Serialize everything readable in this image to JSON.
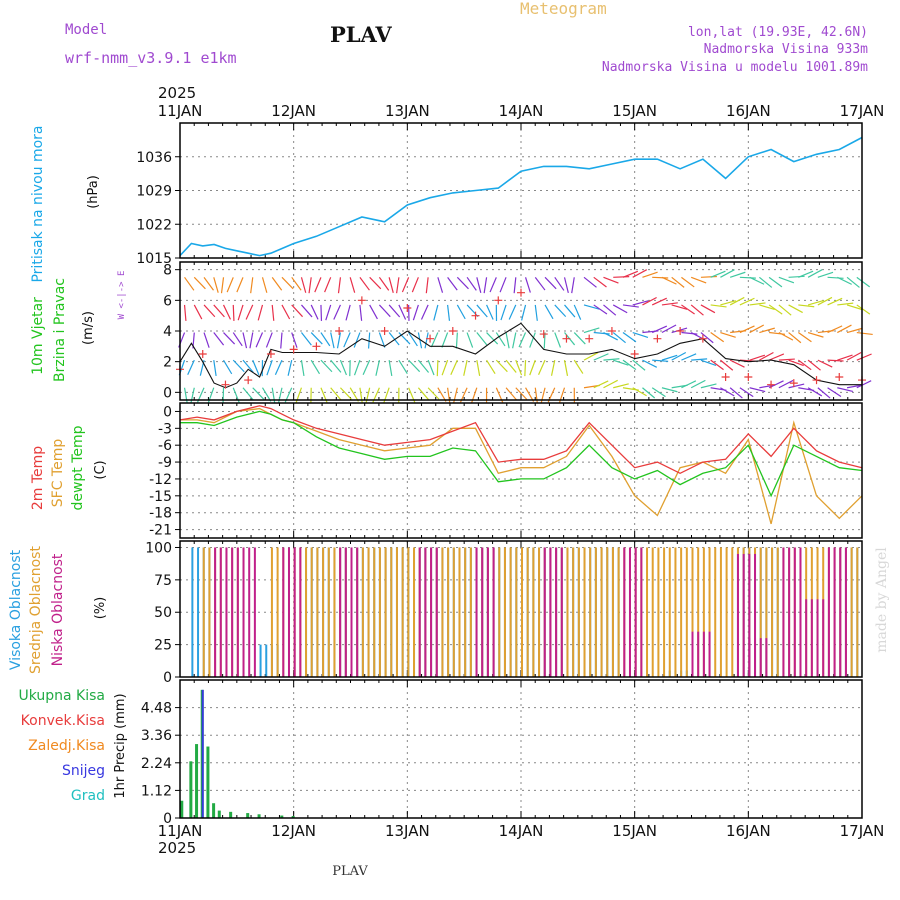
{
  "header": {
    "model_label": "Model",
    "model_name": "wrf-nmm_v3.9.1 e1km",
    "station": "PLAV",
    "product": "Meteogram",
    "lonlat": "lon,lat (19.93E, 42.6N)",
    "elevation": "Nadmorska Visina 933m",
    "model_elevation": "Nadmorska Visina u modelu 1001.89m",
    "watermark": "made by Angel",
    "footer_station": "PLAV"
  },
  "time_axis": {
    "year": "2025",
    "labels": [
      "11JAN",
      "12JAN",
      "13JAN",
      "14JAN",
      "15JAN",
      "16JAN",
      "17JAN"
    ],
    "range_days": [
      0,
      6
    ]
  },
  "colors": {
    "pressure": "#1aa8e8",
    "temp2m": "#e83c3c",
    "sfc_temp": "#e0a030",
    "dewpt": "#22c41e",
    "high_cloud": "#2aa0e0",
    "mid_cloud": "#e0a030",
    "low_cloud": "#c0208a",
    "purple_text": "#a04ad0",
    "total_precip": "#22aa44",
    "snow": "#3838e0",
    "conv": "#e83c3c",
    "frz": "#f08a20",
    "grad": "#20c0c0"
  },
  "chart_data": [
    {
      "type": "line",
      "panel": "pressure",
      "ylabel": [
        "Pritisak na nivou mora",
        "(hPa)"
      ],
      "ylim": [
        1015,
        1043
      ],
      "yticks": [
        1015,
        1022,
        1029,
        1036
      ],
      "series": [
        {
          "x": [
            0,
            0.1,
            0.2,
            0.3,
            0.4,
            0.5,
            0.6,
            0.7,
            0.8,
            0.9,
            1.0,
            1.2,
            1.4,
            1.6,
            1.8,
            2.0,
            2.2,
            2.4,
            2.6,
            2.8,
            3.0,
            3.2,
            3.4,
            3.6,
            3.8,
            4.0,
            4.2,
            4.4,
            4.6,
            4.8,
            5.0,
            5.2,
            5.4,
            5.6,
            5.8,
            6.0
          ],
          "y": [
            1015.5,
            1018,
            1017.5,
            1017.8,
            1017,
            1016.5,
            1016,
            1015.5,
            1016,
            1017,
            1018,
            1019.5,
            1021.5,
            1023.5,
            1022.5,
            1026,
            1027.5,
            1028.5,
            1029,
            1029.5,
            1033,
            1034,
            1034,
            1033.5,
            1034.5,
            1035.5,
            1035.5,
            1033.5,
            1035.5,
            1031.5,
            1036,
            1037.5,
            1035,
            1036.5,
            1037.5,
            1040
          ]
        }
      ]
    },
    {
      "type": "line",
      "panel": "wind",
      "ylabel": [
        "10m Vjetar",
        "Brzina i Pravac",
        "(m/s)"
      ],
      "direction_key": "W <-|-> E",
      "ylim": [
        -0.5,
        8.5
      ],
      "yticks": [
        0,
        2,
        4,
        6,
        8
      ],
      "series": [
        {
          "name": "speed",
          "x": [
            0,
            0.1,
            0.2,
            0.3,
            0.4,
            0.5,
            0.6,
            0.7,
            0.8,
            0.9,
            1.0,
            1.2,
            1.4,
            1.6,
            1.8,
            2.0,
            2.2,
            2.4,
            2.6,
            2.8,
            3.0,
            3.2,
            3.4,
            3.6,
            3.8,
            4.0,
            4.2,
            4.4,
            4.6,
            4.8,
            5.0,
            5.2,
            5.4,
            5.6,
            5.8,
            6.0
          ],
          "y": [
            2.0,
            3.2,
            2.0,
            0.6,
            0.3,
            0.6,
            1.5,
            1.0,
            2.8,
            2.6,
            2.6,
            2.6,
            2.5,
            3.5,
            3.0,
            4.0,
            3.0,
            3.0,
            2.5,
            3.6,
            4.5,
            2.8,
            2.5,
            2.5,
            2.8,
            2.2,
            2.5,
            3.2,
            3.5,
            2.2,
            2.0,
            2.1,
            1.8,
            0.8,
            0.5,
            0.5
          ]
        },
        {
          "name": "gust",
          "x": [
            0,
            0.2,
            0.4,
            0.6,
            0.8,
            1.0,
            1.2,
            1.4,
            1.6,
            1.8,
            2.0,
            2.2,
            2.4,
            2.6,
            2.8,
            3.0,
            3.2,
            3.4,
            3.6,
            3.8,
            4.0,
            4.2,
            4.4,
            4.6,
            4.8,
            5.0,
            5.2,
            5.4,
            5.6,
            5.8,
            6.0
          ],
          "y": [
            1.5,
            2.5,
            0.5,
            0.8,
            2.5,
            2.8,
            3.0,
            4.0,
            6.0,
            4.0,
            5.5,
            3.5,
            4.0,
            5.0,
            6.0,
            6.5,
            3.8,
            3.5,
            3.5,
            4.0,
            2.5,
            3.5,
            4.0,
            3.5,
            1.0,
            1.0,
            0.5,
            0.6,
            0.8,
            1.0,
            0.8
          ]
        }
      ]
    },
    {
      "type": "line",
      "panel": "temperature",
      "ylabel": [
        "2m Temp",
        "SFC Temp",
        "dewpt Temp",
        "(C)"
      ],
      "ylim": [
        -22.5,
        1.5
      ],
      "yticks": [
        0,
        -3,
        -6,
        -9,
        -12,
        -15,
        -18,
        -21
      ],
      "series": [
        {
          "name": "2m Temp",
          "x": [
            0,
            0.15,
            0.3,
            0.5,
            0.7,
            0.8,
            0.9,
            1.0,
            1.2,
            1.4,
            1.6,
            1.8,
            2.0,
            2.2,
            2.4,
            2.6,
            2.8,
            3.0,
            3.2,
            3.4,
            3.6,
            3.8,
            4.0,
            4.2,
            4.4,
            4.6,
            4.8,
            5.0,
            5.2,
            5.4,
            5.6,
            5.8,
            6.0
          ],
          "y": [
            -1.5,
            -1,
            -1.5,
            0,
            1,
            0.5,
            -0.5,
            -1.5,
            -3,
            -4,
            -5,
            -6,
            -5.5,
            -5,
            -3.5,
            -2,
            -9,
            -8.5,
            -8.5,
            -7,
            -2,
            -6,
            -10,
            -9,
            -11,
            -9,
            -8.5,
            -4,
            -8,
            -3,
            -7,
            -9,
            -10
          ]
        },
        {
          "name": "SFC Temp",
          "x": [
            0,
            0.15,
            0.3,
            0.5,
            0.7,
            0.8,
            0.9,
            1.0,
            1.2,
            1.4,
            1.6,
            1.8,
            2.0,
            2.2,
            2.4,
            2.6,
            2.8,
            3.0,
            3.2,
            3.4,
            3.6,
            3.8,
            4.0,
            4.2,
            4.4,
            4.6,
            4.8,
            5.0,
            5.2,
            5.4,
            5.6,
            5.8,
            6.0
          ],
          "y": [
            -1.5,
            -1.5,
            -2,
            0,
            0.5,
            -0.5,
            -1.5,
            -2,
            -3.5,
            -5,
            -6,
            -7,
            -6.5,
            -6,
            -3,
            -3,
            -11,
            -10,
            -10,
            -8,
            -2.5,
            -8,
            -15,
            -18.5,
            -10,
            -9,
            -11,
            -5,
            -20,
            -2,
            -15,
            -19,
            -15
          ]
        },
        {
          "name": "dewpt Temp",
          "x": [
            0,
            0.15,
            0.3,
            0.5,
            0.7,
            0.8,
            0.9,
            1.0,
            1.2,
            1.4,
            1.6,
            1.8,
            2.0,
            2.2,
            2.4,
            2.6,
            2.8,
            3.0,
            3.2,
            3.4,
            3.6,
            3.8,
            4.0,
            4.2,
            4.4,
            4.6,
            4.8,
            5.0,
            5.2,
            5.4,
            5.6,
            5.8,
            6.0
          ],
          "y": [
            -2,
            -2,
            -2.5,
            -1,
            0,
            -0.5,
            -1.5,
            -2,
            -4.5,
            -6.5,
            -7.5,
            -8.5,
            -8,
            -8,
            -6.5,
            -7,
            -12.5,
            -12,
            -12,
            -10,
            -6,
            -10,
            -12,
            -10.5,
            -13,
            -11,
            -10,
            -6,
            -15,
            -6,
            -8,
            -10,
            -10.5
          ]
        }
      ]
    },
    {
      "type": "bar",
      "panel": "clouds",
      "ylabel": [
        "Visoka Oblacnost",
        "Srednja Oblacnost",
        "Niska Oblacnost",
        "(%)"
      ],
      "ylim": [
        0,
        105
      ],
      "yticks": [
        0,
        25,
        50,
        75,
        100
      ],
      "series": [
        {
          "name": "Visoka Oblacnost",
          "x": [
            0.1,
            0.7,
            1.1,
            1.3,
            1.5,
            1.7,
            1.9,
            2.1,
            2.3,
            2.5,
            2.7,
            2.9,
            3.1,
            3.3,
            3.5,
            3.7,
            4.3,
            4.9,
            5.1,
            5.8
          ],
          "y": [
            100,
            25,
            100,
            100,
            100,
            100,
            100,
            100,
            100,
            100,
            100,
            100,
            100,
            100,
            100,
            100,
            5,
            100,
            100,
            100
          ]
        },
        {
          "name": "Srednja Oblacnost",
          "x": [
            0.2,
            0.4,
            0.8,
            1.0,
            1.2,
            1.4,
            1.6,
            1.8,
            2.0,
            2.2,
            2.4,
            2.6,
            2.8,
            3.0,
            3.2,
            3.4,
            3.6,
            3.8,
            4.0,
            4.2,
            4.4,
            4.6,
            4.8,
            5.0,
            5.2,
            5.4,
            5.6,
            5.8
          ],
          "y": [
            100,
            100,
            100,
            100,
            100,
            100,
            100,
            100,
            100,
            100,
            100,
            100,
            100,
            100,
            100,
            100,
            100,
            100,
            100,
            100,
            100,
            100,
            100,
            100,
            100,
            100,
            100,
            100
          ]
        },
        {
          "name": "Niska Oblacnost",
          "x": [
            0.3,
            0.5,
            0.9,
            1.4,
            2.1,
            2.6,
            3.2,
            3.9,
            4.5,
            4.9,
            5.0,
            5.3,
            5.5,
            5.7,
            6.0
          ],
          "y": [
            100,
            100,
            100,
            100,
            100,
            100,
            100,
            100,
            35,
            95,
            30,
            100,
            60,
            100,
            75
          ]
        }
      ]
    },
    {
      "type": "bar",
      "panel": "precipitation",
      "ylabel": [
        "1hr Precip (mm)"
      ],
      "ylim": [
        0,
        5.6
      ],
      "yticks": [
        0,
        1.12,
        2.24,
        3.36,
        4.48
      ],
      "legend": [
        "Ukupna Kisa",
        "Konvek.Kisa",
        "Zaledj.Kisa",
        "Snijeg",
        "Grad"
      ],
      "series": [
        {
          "name": "Ukupna Kisa",
          "x": [
            0.02,
            0.1,
            0.15,
            0.2,
            0.25,
            0.3,
            0.35,
            0.45,
            0.6,
            0.7,
            0.9,
            1.0
          ],
          "y": [
            0.7,
            2.3,
            3.0,
            5.2,
            2.9,
            0.6,
            0.3,
            0.25,
            0.2,
            0.15,
            0.1,
            0.08
          ]
        }
      ]
    }
  ]
}
